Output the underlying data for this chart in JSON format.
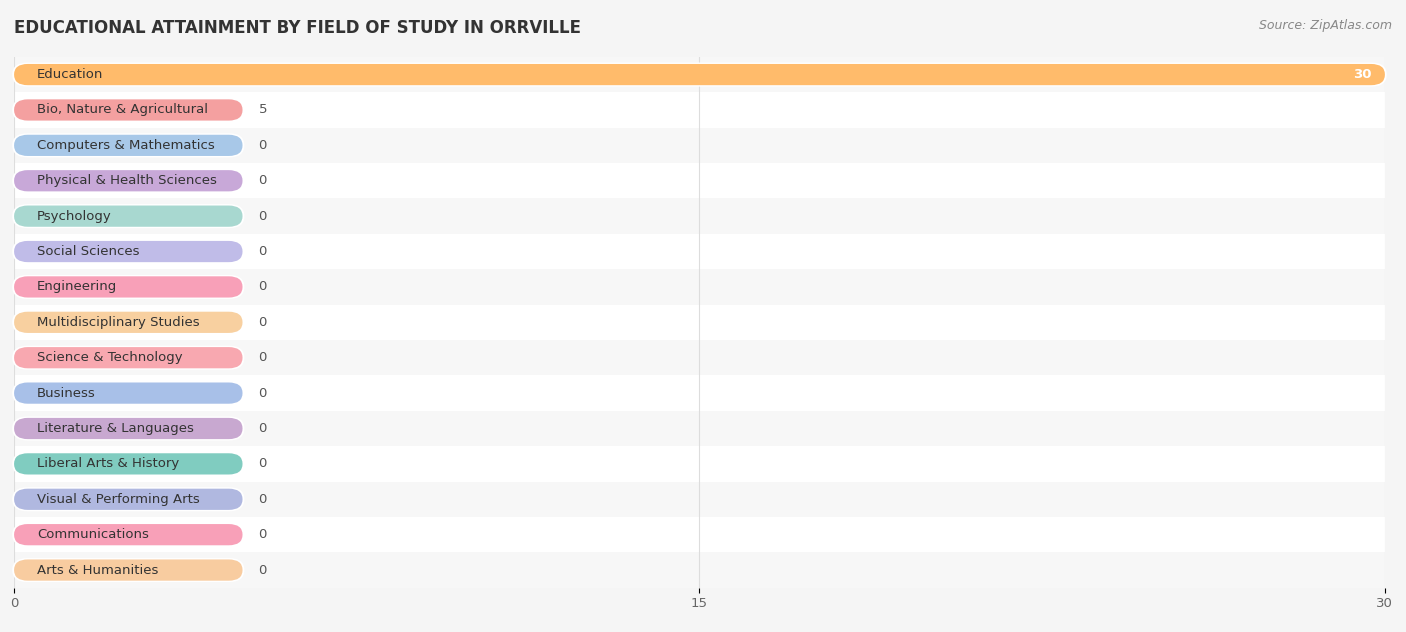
{
  "title": "EDUCATIONAL ATTAINMENT BY FIELD OF STUDY IN ORRVILLE",
  "source": "Source: ZipAtlas.com",
  "categories": [
    "Education",
    "Bio, Nature & Agricultural",
    "Computers & Mathematics",
    "Physical & Health Sciences",
    "Psychology",
    "Social Sciences",
    "Engineering",
    "Multidisciplinary Studies",
    "Science & Technology",
    "Business",
    "Literature & Languages",
    "Liberal Arts & History",
    "Visual & Performing Arts",
    "Communications",
    "Arts & Humanities"
  ],
  "values": [
    30,
    5,
    0,
    0,
    0,
    0,
    0,
    0,
    0,
    0,
    0,
    0,
    0,
    0,
    0
  ],
  "bar_colors": [
    "#FFBB6B",
    "#F4A0A0",
    "#A8C8E8",
    "#C8A8D8",
    "#A8D8D0",
    "#C0BCE8",
    "#F8A0B8",
    "#F8D0A0",
    "#F8A8B0",
    "#A8C0E8",
    "#C8A8D0",
    "#80CCC0",
    "#B0B8E0",
    "#F8A0B8",
    "#F8CCA0"
  ],
  "zero_bar_width": 5.0,
  "background_color": "#f5f5f5",
  "row_bg_even": "#f7f7f7",
  "row_bg_odd": "#ffffff",
  "grid_color": "#dddddd",
  "xlim": [
    0,
    30
  ],
  "xticks": [
    0,
    15,
    30
  ],
  "title_fontsize": 12,
  "label_fontsize": 9.5,
  "source_fontsize": 9
}
